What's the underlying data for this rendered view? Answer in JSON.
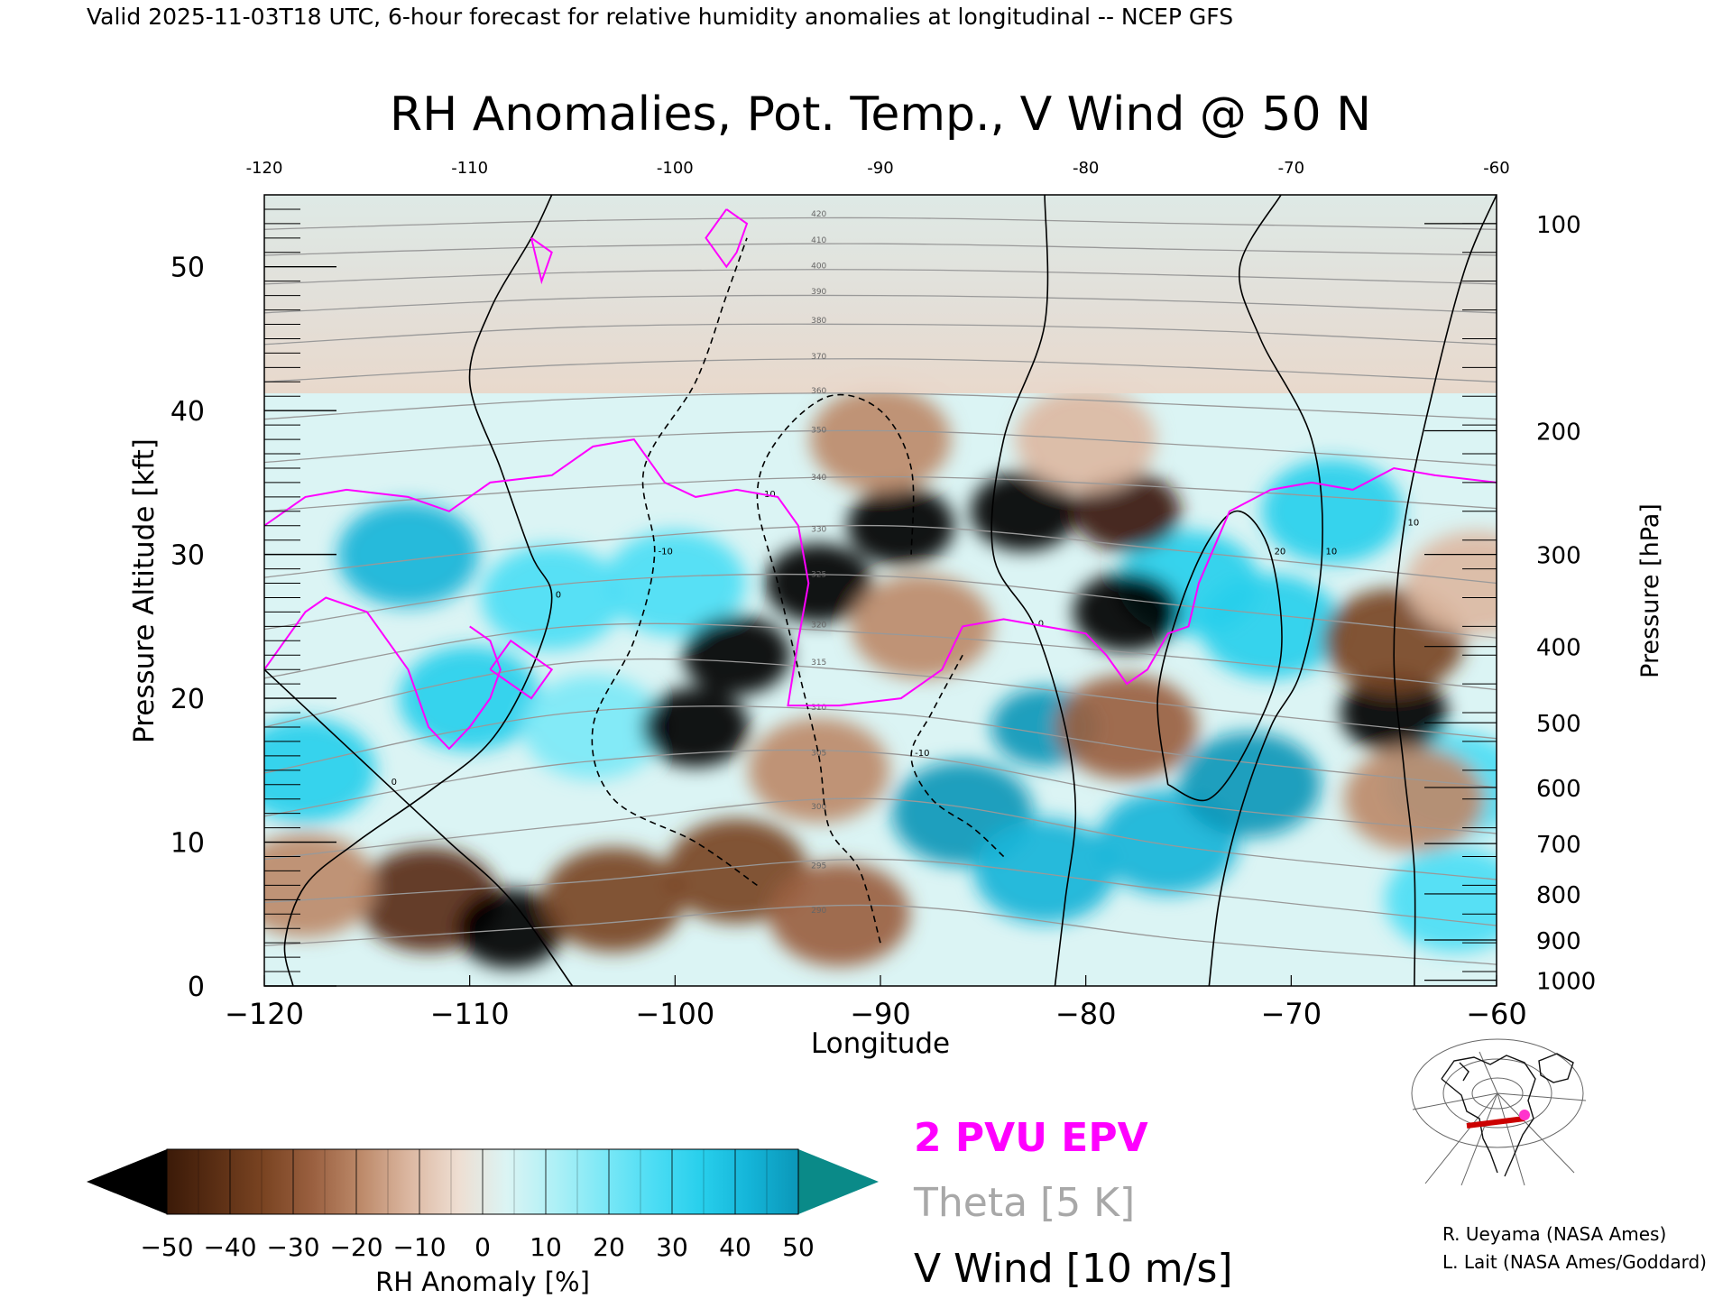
{
  "header": "Valid 2025-11-03T18 UTC, 6-hour forecast for relative humidity anomalies at longitudinal -- NCEP GFS",
  "chart_data": {
    "type": "heatmap",
    "title": "RH Anomalies, Pot. Temp., V Wind @ 50 N",
    "xlabel": "Longitude",
    "ylabel": "Pressure Altitude [kft]",
    "y2label": "Pressure [hPa]",
    "xlim": [
      -120,
      -60
    ],
    "ylim": [
      0,
      55
    ],
    "x_ticks": [
      -120,
      -110,
      -100,
      -90,
      -80,
      -70,
      -60
    ],
    "y_ticks": [
      0,
      10,
      20,
      30,
      40,
      50
    ],
    "pressure_ticks": [
      {
        "hpa": 100,
        "kft": 53.0
      },
      {
        "hpa": 200,
        "kft": 38.6
      },
      {
        "hpa": 300,
        "kft": 30.0
      },
      {
        "hpa": 400,
        "kft": 23.6
      },
      {
        "hpa": 500,
        "kft": 18.3
      },
      {
        "hpa": 600,
        "kft": 13.8
      },
      {
        "hpa": 700,
        "kft": 9.9
      },
      {
        "hpa": 800,
        "kft": 6.4
      },
      {
        "hpa": 900,
        "kft": 3.2
      },
      {
        "hpa": 1000,
        "kft": 0.4
      }
    ],
    "colorbar": {
      "label": "RH Anomaly [%]",
      "ticks": [
        -50,
        -40,
        -30,
        -20,
        -10,
        0,
        10,
        20,
        30,
        40,
        50
      ],
      "colors": [
        "#000000",
        "#3b1a08",
        "#5a2e14",
        "#7a4422",
        "#9a6040",
        "#bd8a6a",
        "#dcb8a2",
        "#eeded2",
        "#dbf4f4",
        "#aef0f6",
        "#7ce8f6",
        "#4dddf4",
        "#28cfec",
        "#14b4d8",
        "#0b97b8",
        "#0a8a88"
      ]
    },
    "rh_blobs": [
      {
        "lon": -113,
        "kft": 30,
        "rh": 35
      },
      {
        "lon": -110,
        "kft": 20,
        "rh": 30
      },
      {
        "lon": -118,
        "kft": 15,
        "rh": 30
      },
      {
        "lon": -106,
        "kft": 27,
        "rh": 25
      },
      {
        "lon": -100,
        "kft": 28,
        "rh": 22
      },
      {
        "lon": -104,
        "kft": 18,
        "rh": 15
      },
      {
        "lon": -86,
        "kft": 12,
        "rh": 40
      },
      {
        "lon": -82,
        "kft": 18,
        "rh": 45
      },
      {
        "lon": -82,
        "kft": 8,
        "rh": 35
      },
      {
        "lon": -76,
        "kft": 10,
        "rh": 35
      },
      {
        "lon": -72,
        "kft": 14,
        "rh": 40
      },
      {
        "lon": -71,
        "kft": 25,
        "rh": 30
      },
      {
        "lon": -68,
        "kft": 33,
        "rh": 30
      },
      {
        "lon": -62,
        "kft": 6,
        "rh": 25
      },
      {
        "lon": -62,
        "kft": 14,
        "rh": 20
      },
      {
        "lon": -75,
        "kft": 28,
        "rh": 30
      },
      {
        "lon": -112,
        "kft": 6,
        "rh": -40
      },
      {
        "lon": -108,
        "kft": 4,
        "rh": -50
      },
      {
        "lon": -103,
        "kft": 6,
        "rh": -30
      },
      {
        "lon": -97,
        "kft": 8,
        "rh": -30
      },
      {
        "lon": -92,
        "kft": 5,
        "rh": -25
      },
      {
        "lon": -99,
        "kft": 18,
        "rh": -50
      },
      {
        "lon": -97,
        "kft": 23,
        "rh": -50
      },
      {
        "lon": -93,
        "kft": 28,
        "rh": -50
      },
      {
        "lon": -89,
        "kft": 32,
        "rh": -50
      },
      {
        "lon": -83,
        "kft": 33,
        "rh": -50
      },
      {
        "lon": -78,
        "kft": 33,
        "rh": -45
      },
      {
        "lon": -78,
        "kft": 26,
        "rh": -50
      },
      {
        "lon": -78,
        "kft": 18,
        "rh": -25
      },
      {
        "lon": -88,
        "kft": 25,
        "rh": -20
      },
      {
        "lon": -93,
        "kft": 15,
        "rh": -20
      },
      {
        "lon": -90,
        "kft": 38,
        "rh": -15
      },
      {
        "lon": -80,
        "kft": 38,
        "rh": -10
      },
      {
        "lon": -65,
        "kft": 19,
        "rh": -50
      },
      {
        "lon": -65,
        "kft": 24,
        "rh": -30
      },
      {
        "lon": -64,
        "kft": 13,
        "rh": -20
      },
      {
        "lon": -61,
        "kft": 28,
        "rh": -10
      },
      {
        "lon": -118,
        "kft": 7,
        "rh": -15
      }
    ],
    "theta_contours": [
      {
        "value": 290,
        "kft": [
          2.8,
          4.2,
          5.6,
          3.2,
          1.5
        ]
      },
      {
        "value": 295,
        "kft": [
          5.8,
          7.2,
          8.8,
          6.5,
          4.2
        ]
      },
      {
        "value": 300,
        "kft": [
          8.8,
          11.2,
          13.0,
          9.6,
          7.4
        ]
      },
      {
        "value": 305,
        "kft": [
          11.8,
          15.5,
          16.2,
          12.6,
          10.6
        ]
      },
      {
        "value": 310,
        "kft": [
          14.8,
          19.0,
          19.0,
          16.0,
          13.8
        ]
      },
      {
        "value": 315,
        "kft": [
          18.0,
          22.5,
          21.8,
          19.4,
          17.2
        ]
      },
      {
        "value": 320,
        "kft": [
          21.4,
          25.0,
          24.5,
          22.8,
          20.6
        ]
      },
      {
        "value": 325,
        "kft": [
          24.8,
          28.0,
          28.5,
          26.4,
          24.2
        ]
      },
      {
        "value": 330,
        "kft": [
          28.4,
          30.8,
          32.0,
          30.2,
          28.0
        ]
      },
      {
        "value": 340,
        "kft": [
          33.0,
          34.6,
          35.4,
          34.6,
          33.2
        ]
      },
      {
        "value": 350,
        "kft": [
          36.4,
          38.0,
          38.6,
          37.6,
          36.2
        ]
      },
      {
        "value": 360,
        "kft": [
          39.4,
          40.8,
          41.2,
          40.4,
          39.4
        ]
      },
      {
        "value": 370,
        "kft": [
          42.0,
          43.2,
          43.6,
          43.0,
          42.0
        ]
      },
      {
        "value": 380,
        "kft": [
          44.6,
          45.8,
          46.0,
          45.6,
          44.6
        ]
      },
      {
        "value": 390,
        "kft": [
          46.8,
          47.8,
          48.0,
          47.6,
          46.8
        ]
      },
      {
        "value": 400,
        "kft": [
          48.8,
          49.6,
          49.8,
          49.4,
          48.8
        ]
      },
      {
        "value": 410,
        "kft": [
          50.8,
          51.4,
          51.6,
          51.2,
          50.8
        ]
      },
      {
        "value": 420,
        "kft": [
          52.6,
          53.2,
          53.4,
          53.0,
          52.6
        ]
      }
    ],
    "theta_lons": [
      -120,
      -105,
      -90,
      -75,
      -60
    ],
    "vwind_contours": [
      {
        "value": 0,
        "dashed": false,
        "points": [
          [
            -118.6,
            0
          ],
          [
            -119,
            3
          ],
          [
            -118,
            7
          ],
          [
            -115.5,
            10
          ],
          [
            -112,
            13.5
          ],
          [
            -109,
            17
          ],
          [
            -107,
            22
          ],
          [
            -106,
            27
          ],
          [
            -107,
            30
          ],
          [
            -108.5,
            36
          ],
          [
            -110,
            42
          ],
          [
            -109,
            47
          ],
          [
            -107,
            52
          ],
          [
            -106,
            55
          ]
        ]
      },
      {
        "value": 0,
        "dashed": false,
        "points": [
          [
            -105,
            0
          ],
          [
            -108,
            6
          ],
          [
            -111,
            10
          ],
          [
            -114,
            14
          ],
          [
            -117,
            18
          ],
          [
            -120,
            22
          ]
        ]
      },
      {
        "value": 0,
        "dashed": false,
        "points": [
          [
            -81.5,
            0
          ],
          [
            -81,
            6
          ],
          [
            -80.5,
            12
          ],
          [
            -81,
            18
          ],
          [
            -82.5,
            25
          ],
          [
            -84.5,
            30
          ],
          [
            -84,
            38
          ],
          [
            -82,
            46
          ],
          [
            -82,
            55
          ]
        ]
      },
      {
        "value": 10,
        "dashed": false,
        "points": [
          [
            -74,
            0
          ],
          [
            -73.5,
            6
          ],
          [
            -72.5,
            12
          ],
          [
            -71,
            18
          ],
          [
            -69.5,
            22
          ],
          [
            -68.5,
            30
          ],
          [
            -69,
            38
          ],
          [
            -71.5,
            45
          ],
          [
            -72.5,
            50
          ],
          [
            -70.5,
            55
          ]
        ]
      },
      {
        "value": 10,
        "dashed": false,
        "points": [
          [
            -64,
            0
          ],
          [
            -64,
            8
          ],
          [
            -64.5,
            15
          ],
          [
            -65,
            23
          ],
          [
            -64.5,
            32
          ],
          [
            -63,
            42
          ],
          [
            -61.5,
            50
          ],
          [
            -60,
            55
          ]
        ]
      },
      {
        "value": 20,
        "dashed": false,
        "points": [
          [
            -76,
            14
          ],
          [
            -76.5,
            20
          ],
          [
            -75.5,
            26
          ],
          [
            -74,
            31
          ],
          [
            -72.5,
            33
          ],
          [
            -71,
            30
          ],
          [
            -70.5,
            23
          ],
          [
            -72,
            17
          ],
          [
            -74,
            13
          ],
          [
            -76,
            14
          ]
        ]
      },
      {
        "value": -10,
        "dashed": true,
        "points": [
          [
            -96,
            7
          ],
          [
            -99,
            10
          ],
          [
            -103,
            13
          ],
          [
            -104,
            18
          ],
          [
            -102,
            24
          ],
          [
            -101,
            30
          ],
          [
            -101.5,
            36
          ],
          [
            -99,
            42
          ],
          [
            -97.5,
            48
          ],
          [
            -96.5,
            52
          ]
        ]
      },
      {
        "value": -10,
        "dashed": true,
        "points": [
          [
            -90,
            3
          ],
          [
            -91,
            8
          ],
          [
            -92.5,
            11
          ],
          [
            -93,
            16
          ],
          [
            -94,
            22
          ],
          [
            -95,
            28
          ],
          [
            -96,
            34
          ],
          [
            -95,
            38
          ],
          [
            -92.5,
            41
          ],
          [
            -90,
            40
          ],
          [
            -88.5,
            36
          ],
          [
            -88.5,
            30
          ]
        ]
      },
      {
        "value": -10,
        "dashed": true,
        "points": [
          [
            -84,
            9
          ],
          [
            -85.5,
            11
          ],
          [
            -87.5,
            13
          ],
          [
            -88.5,
            16
          ],
          [
            -87.5,
            19
          ],
          [
            -86,
            23
          ]
        ]
      }
    ],
    "epv_2pvu": [
      {
        "points": [
          [
            -120,
            32
          ],
          [
            -118,
            34
          ],
          [
            -116,
            34.5
          ],
          [
            -113,
            34
          ],
          [
            -111,
            33
          ],
          [
            -109,
            35
          ],
          [
            -106,
            35.5
          ],
          [
            -104,
            37.5
          ],
          [
            -102,
            38
          ],
          [
            -100.5,
            35
          ],
          [
            -99,
            34
          ],
          [
            -97,
            34.5
          ],
          [
            -95,
            34
          ],
          [
            -94,
            32
          ],
          [
            -93.5,
            28
          ],
          [
            -94,
            24
          ],
          [
            -94.5,
            19.5
          ],
          [
            -92,
            19.5
          ],
          [
            -89,
            20
          ],
          [
            -87,
            22
          ],
          [
            -86,
            25
          ],
          [
            -84,
            25.5
          ],
          [
            -82,
            25
          ],
          [
            -80,
            24.5
          ],
          [
            -79,
            23
          ],
          [
            -78,
            21
          ],
          [
            -77,
            22
          ],
          [
            -76,
            24.5
          ],
          [
            -75,
            25
          ],
          [
            -74.5,
            28
          ],
          [
            -73,
            33
          ],
          [
            -71,
            34.5
          ],
          [
            -69,
            35
          ],
          [
            -67,
            34.5
          ],
          [
            -65,
            36
          ],
          [
            -63,
            35.5
          ],
          [
            -60,
            35
          ]
        ]
      },
      {
        "points": [
          [
            -120,
            22
          ],
          [
            -118,
            26
          ],
          [
            -117,
            27
          ],
          [
            -115,
            26
          ],
          [
            -114,
            24
          ],
          [
            -113,
            22
          ],
          [
            -112,
            18
          ],
          [
            -111,
            16.5
          ],
          [
            -110,
            18
          ],
          [
            -109,
            20
          ],
          [
            -108.5,
            22
          ],
          [
            -109,
            24
          ],
          [
            -110,
            25
          ]
        ]
      },
      {
        "points": [
          [
            -97.5,
            54
          ],
          [
            -96.5,
            53
          ],
          [
            -97,
            51
          ],
          [
            -97.5,
            50
          ],
          [
            -98.5,
            52
          ],
          [
            -97.5,
            54
          ]
        ]
      },
      {
        "points": [
          [
            -107,
            52
          ],
          [
            -106.5,
            49
          ],
          [
            -106,
            51
          ],
          [
            -107,
            52
          ]
        ]
      },
      {
        "points": [
          [
            -109,
            22
          ],
          [
            -108,
            24
          ],
          [
            -107,
            23
          ],
          [
            -106,
            22
          ],
          [
            -107,
            20
          ],
          [
            -108.5,
            21.5
          ],
          [
            -109,
            22
          ]
        ]
      }
    ],
    "colors": {
      "epv": "#ff00ff",
      "theta": "#999999",
      "vwind": "#000000",
      "inset_line": "#cc0000",
      "inset_dot": "#ff33cc"
    }
  },
  "legend": {
    "epv": "2 PVU EPV",
    "theta": "Theta [5 K]",
    "vwind": "V Wind [10 m/s]"
  },
  "credits": {
    "line1": "R. Ueyama (NASA Ames)",
    "line2": "L. Lait (NASA Ames/Goddard)"
  },
  "inset_map": {
    "icon": "locator-map-icon",
    "section_lon": [
      -120,
      -60
    ],
    "section_lat": 50
  }
}
